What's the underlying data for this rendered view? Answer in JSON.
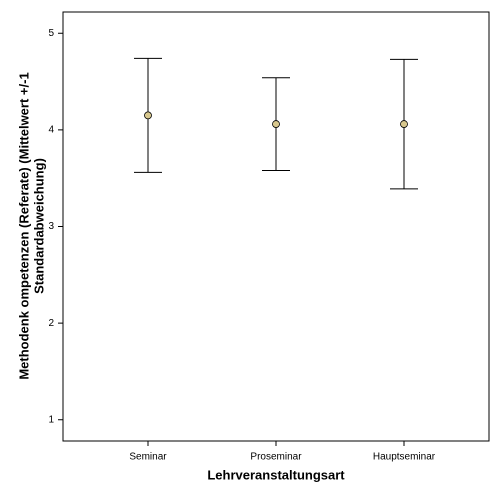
{
  "chart_data": {
    "type": "errorbar",
    "x_label": "Lehrveranstaltungsart",
    "y_label": [
      "Methodenk ompetenzen (Referate) (Mittelwert +/-1",
      "Standardabweichung)"
    ],
    "categories": [
      "Seminar",
      "Proseminar",
      "Hauptseminar"
    ],
    "values": [
      4.15,
      4.06,
      4.06
    ],
    "errors": [
      0.59,
      0.48,
      0.67
    ],
    "color": "#d8c88e",
    "ylim": [
      0.78,
      5.22
    ],
    "yticks": [
      1,
      2,
      3,
      4,
      5
    ]
  }
}
